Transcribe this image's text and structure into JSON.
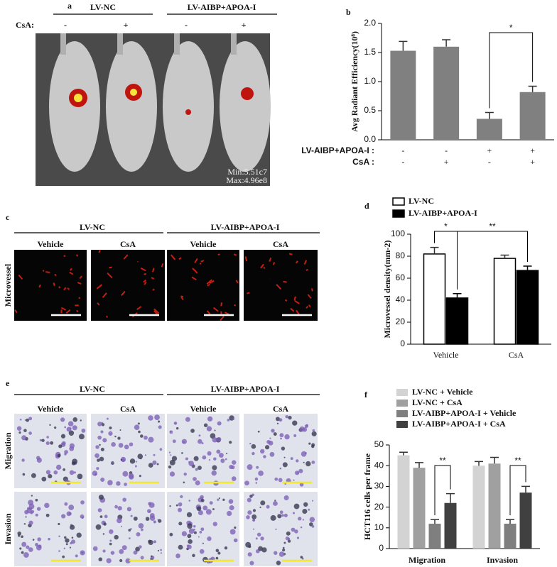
{
  "panels": {
    "a": {
      "label": "a",
      "groups": [
        "LV-NC",
        "LV-AIBP+APOA-I"
      ],
      "row_label": "CsA:",
      "signs": [
        "-",
        "+",
        "-",
        "+"
      ],
      "image_text": [
        "Min:5.51c7",
        "Max:4.96e8"
      ]
    },
    "c": {
      "label": "c",
      "groups": [
        "LV-NC",
        "LV-AIBP+APOA-I"
      ],
      "conditions": [
        "Vehicle",
        "CsA",
        "Vehicle",
        "CsA"
      ],
      "row_labels": [
        "Microvessel"
      ]
    },
    "e": {
      "label": "e",
      "groups": [
        "LV-NC",
        "LV-AIBP+APOA-I"
      ],
      "conditions": [
        "Vehicle",
        "CsA",
        "Vehicle",
        "CsA"
      ],
      "row_labels": [
        "Migration",
        "Invasion"
      ]
    }
  },
  "chart_data": [
    {
      "type": "bar",
      "panel_label": "b",
      "y_label": "Avg Radiant Efficiency(10⁸)",
      "series": [
        {
          "color": "#808080",
          "values": [
            1.53,
            1.6,
            0.36,
            0.82
          ],
          "errors": [
            0.16,
            0.12,
            0.11,
            0.1
          ]
        }
      ],
      "ylim": [
        0,
        2.0
      ],
      "yticks": [
        {
          "value": 0,
          "label": "0.0"
        },
        {
          "value": 0.5,
          "label": "0.5"
        },
        {
          "value": 1.0,
          "label": "1.0"
        },
        {
          "value": 1.5,
          "label": "1.5"
        },
        {
          "value": 2.0,
          "label": "2.0"
        }
      ],
      "condition_rows": [
        {
          "label": "LV-AIBP+APOA-I :",
          "values": [
            "-",
            "-",
            "+",
            "+"
          ]
        },
        {
          "label": "CsA :",
          "values": [
            "-",
            "+",
            "-",
            "+"
          ]
        }
      ],
      "significance": [
        "*"
      ]
    },
    {
      "type": "bar",
      "panel_label": "d",
      "y_label": "Microvessel density(mm-2)",
      "categories": [
        "Vehicle",
        "CsA"
      ],
      "series": [
        {
          "name": "LV-NC",
          "color": "#ffffff",
          "values": [
            82,
            78
          ],
          "errors": [
            6,
            3
          ]
        },
        {
          "name": "LV-AIBP+APOA-I",
          "color": "#000000",
          "values": [
            42,
            67
          ],
          "errors": [
            4,
            4
          ]
        }
      ],
      "ylim": [
        0,
        100
      ],
      "yticks": [
        0,
        20,
        40,
        60,
        80,
        100
      ],
      "significance": [
        "*",
        "**"
      ]
    },
    {
      "type": "bar",
      "panel_label": "f",
      "y_label": "HCT116 cells per frame",
      "categories": [
        "Migration",
        "Invasion"
      ],
      "series": [
        {
          "name": "LV-NC + Vehicle",
          "color": "#d3d3d3",
          "values": [
            45,
            40
          ],
          "errors": [
            1.5,
            2
          ]
        },
        {
          "name": "LV-NC + CsA",
          "color": "#a0a0a0",
          "values": [
            39,
            41
          ],
          "errors": [
            2.5,
            3
          ]
        },
        {
          "name": "LV-AIBP+APOA-I  + Vehicle",
          "color": "#7f7f7f",
          "values": [
            12,
            12
          ],
          "errors": [
            2,
            2
          ]
        },
        {
          "name": "LV-AIBP+APOA-I  + CsA",
          "color": "#404040",
          "values": [
            22,
            27
          ],
          "errors": [
            4.5,
            3
          ]
        }
      ],
      "ylim": [
        0,
        50
      ],
      "yticks": [
        0,
        10,
        20,
        30,
        40,
        50
      ],
      "significance": [
        "**",
        "**"
      ]
    }
  ]
}
